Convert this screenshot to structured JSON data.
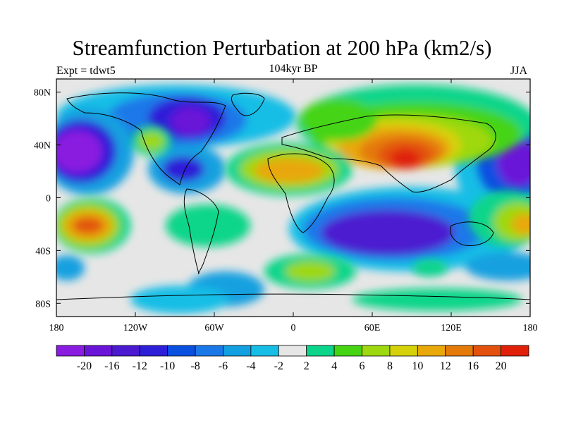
{
  "title": "Streamfunction Perturbation at 200 hPa (km2/s)",
  "left_label": "Expt = tdwt5",
  "center_label": "104kyr BP",
  "right_label": "JJA",
  "map": {
    "projection": "cylindrical-equidistant",
    "lon_range": [
      -180,
      180
    ],
    "lat_range": [
      -90,
      90
    ],
    "lat_ticks": [
      {
        "lat": 80,
        "label": "80N"
      },
      {
        "lat": 40,
        "label": "40N"
      },
      {
        "lat": 0,
        "label": "0"
      },
      {
        "lat": -40,
        "label": "40S"
      },
      {
        "lat": -80,
        "label": "80S"
      }
    ],
    "lon_ticks": [
      {
        "lon": -180,
        "label": "180"
      },
      {
        "lon": -120,
        "label": "120W"
      },
      {
        "lon": -60,
        "label": "60W"
      },
      {
        "lon": 0,
        "label": "0"
      },
      {
        "lon": 60,
        "label": "60E"
      },
      {
        "lon": 120,
        "label": "120E"
      },
      {
        "lon": 180,
        "label": "180"
      }
    ],
    "background_color": "#e6e6e6",
    "coastline_color": "#000000"
  },
  "colorbar": {
    "colors": [
      "#8a1be0",
      "#6a14d8",
      "#4b1ad0",
      "#2d1fd8",
      "#0a50e0",
      "#1a78e8",
      "#12a0e0",
      "#16bee6",
      "#e6e6e6",
      "#0ad58a",
      "#44d412",
      "#9ed80e",
      "#d6d20a",
      "#e8a80a",
      "#e47a08",
      "#e2520c",
      "#e02008"
    ],
    "labels": [
      "-20",
      "-16",
      "-12",
      "-10",
      "-8",
      "-6",
      "-4",
      "-2",
      "2",
      "4",
      "6",
      "8",
      "10",
      "12",
      "16",
      "20"
    ]
  },
  "field_anomalies": [
    {
      "name": "north-pacific-low",
      "lon": -160,
      "lat": 37,
      "value": -20
    },
    {
      "name": "north-america-low",
      "lon": -85,
      "lat": 60,
      "value": -16
    },
    {
      "name": "gulf-low",
      "lon": -90,
      "lat": 25,
      "value": -12
    },
    {
      "name": "west-pacific-low",
      "lon": 165,
      "lat": 35,
      "value": -18
    },
    {
      "name": "southern-indian-low",
      "lon": 75,
      "lat": -27,
      "value": -16
    },
    {
      "name": "asian-high",
      "lon": 85,
      "lat": 30,
      "value": 20
    },
    {
      "name": "africa-high",
      "lon": 0,
      "lat": 25,
      "value": 12
    },
    {
      "name": "siberia-high",
      "lon": 100,
      "lat": 58,
      "value": 10
    },
    {
      "name": "south-pacific-high",
      "lon": -155,
      "lat": -22,
      "value": 16
    },
    {
      "name": "southeast-pacific-high",
      "lon": 170,
      "lat": -18,
      "value": 12
    },
    {
      "name": "south-atlantic-high",
      "lon": 15,
      "lat": -55,
      "value": 8
    },
    {
      "name": "west-atlantic-high",
      "lon": -110,
      "lat": 45,
      "value": 8
    }
  ]
}
